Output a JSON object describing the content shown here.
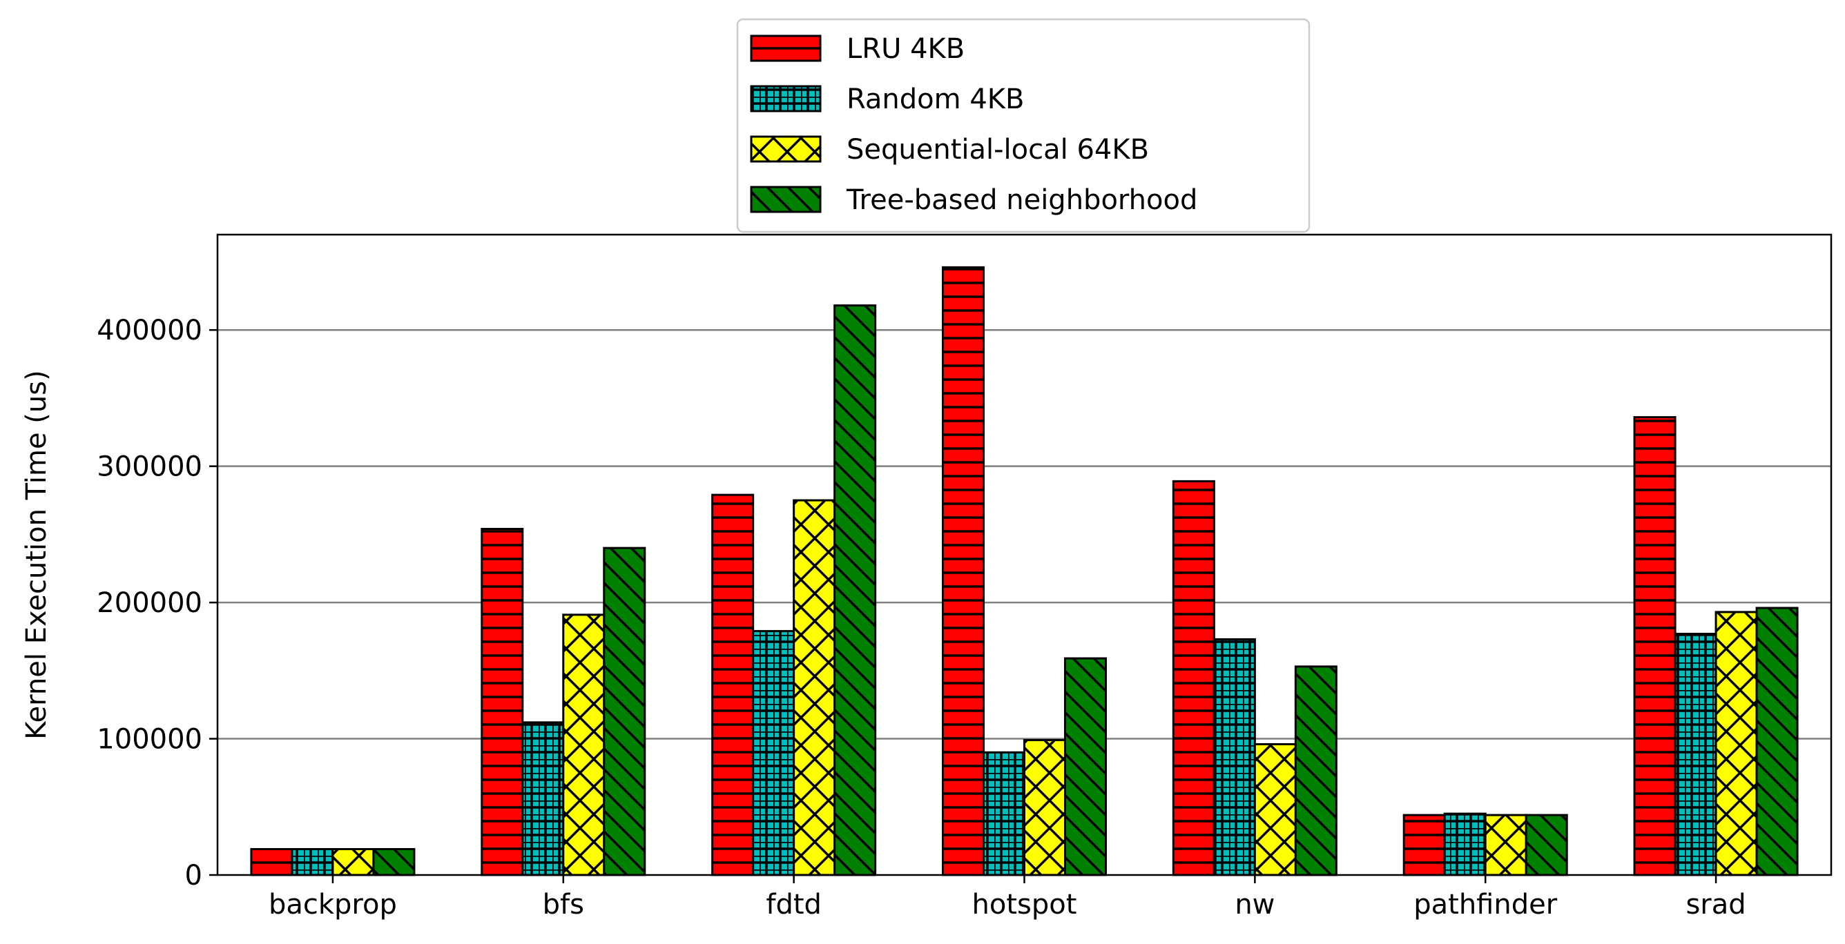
{
  "chart_data": {
    "type": "bar",
    "title": "",
    "xlabel": "",
    "ylabel": "Kernel Execution Time (us)",
    "ylim": [
      0,
      470000
    ],
    "yticks": [
      0,
      100000,
      200000,
      300000,
      400000
    ],
    "ytick_labels": [
      "0",
      "100000",
      "200000",
      "300000",
      "400000"
    ],
    "grid": "horizontal",
    "legend_placement": "top-center",
    "categories": [
      "backprop",
      "bfs",
      "fdtd",
      "hotspot",
      "nw",
      "pathfinder",
      "srad"
    ],
    "series": [
      {
        "name": "LRU 4KB",
        "color": "#ff0000",
        "hatch": "horizontal",
        "values": [
          19000,
          254000,
          279000,
          446000,
          289000,
          44000,
          336000
        ]
      },
      {
        "name": "Random 4KB",
        "color": "#00bfbf",
        "hatch": "grid",
        "values": [
          19000,
          112000,
          179000,
          90000,
          173000,
          45000,
          177000
        ]
      },
      {
        "name": "Sequential-local 64KB",
        "color": "#ffff00",
        "hatch": "cross",
        "values": [
          19000,
          191000,
          275000,
          99000,
          96000,
          44000,
          193000
        ]
      },
      {
        "name": "Tree-based neighborhood",
        "color": "#008000",
        "hatch": "backslash",
        "values": [
          19000,
          240000,
          418000,
          159000,
          153000,
          44000,
          196000
        ]
      }
    ]
  }
}
